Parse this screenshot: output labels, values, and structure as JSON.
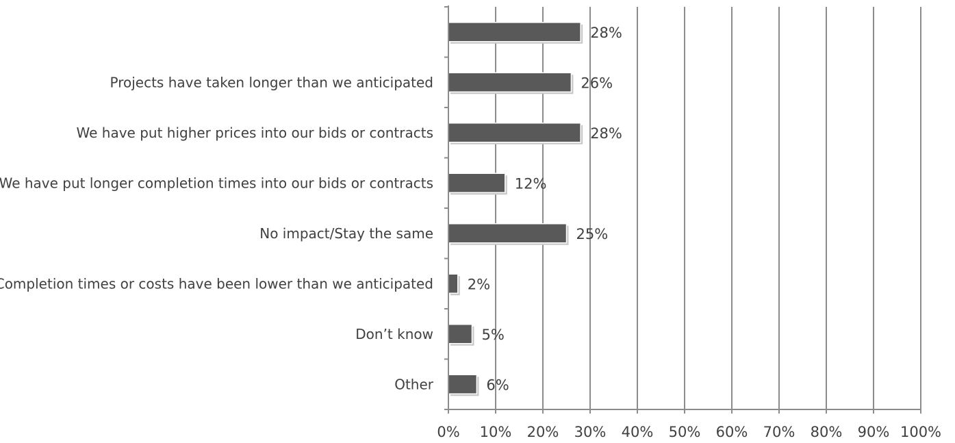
{
  "colors": {
    "bar_fill": "#595959",
    "bar_border": "#ffffff",
    "gridline": "#8c8c8c",
    "axis": "#8c8c8c",
    "text": "#404040"
  },
  "chart_data": {
    "type": "bar",
    "orientation": "horizontal",
    "categories": [
      "",
      "Projects have taken longer than we anticipated",
      "We have put higher prices into our bids or contracts",
      "We have put longer completion times into our bids or contracts",
      "No impact/Stay the same",
      "Completion times or costs have been lower than we anticipated",
      "Don’t know",
      "Other"
    ],
    "values": [
      28,
      26,
      28,
      12,
      25,
      2,
      5,
      6
    ],
    "data_labels": [
      "28%",
      "26%",
      "28%",
      "12%",
      "25%",
      "2%",
      "5%",
      "6%"
    ],
    "xlim": [
      0,
      100
    ],
    "x_ticks": [
      0,
      10,
      20,
      30,
      40,
      50,
      60,
      70,
      80,
      90,
      100
    ],
    "x_tick_labels": [
      "0%",
      "10%",
      "20%",
      "30%",
      "40%",
      "50%",
      "60%",
      "70%",
      "80%",
      "90%",
      "100%"
    ],
    "grid": "vertical",
    "legend": "none",
    "title": "",
    "xlabel": "",
    "ylabel": ""
  }
}
